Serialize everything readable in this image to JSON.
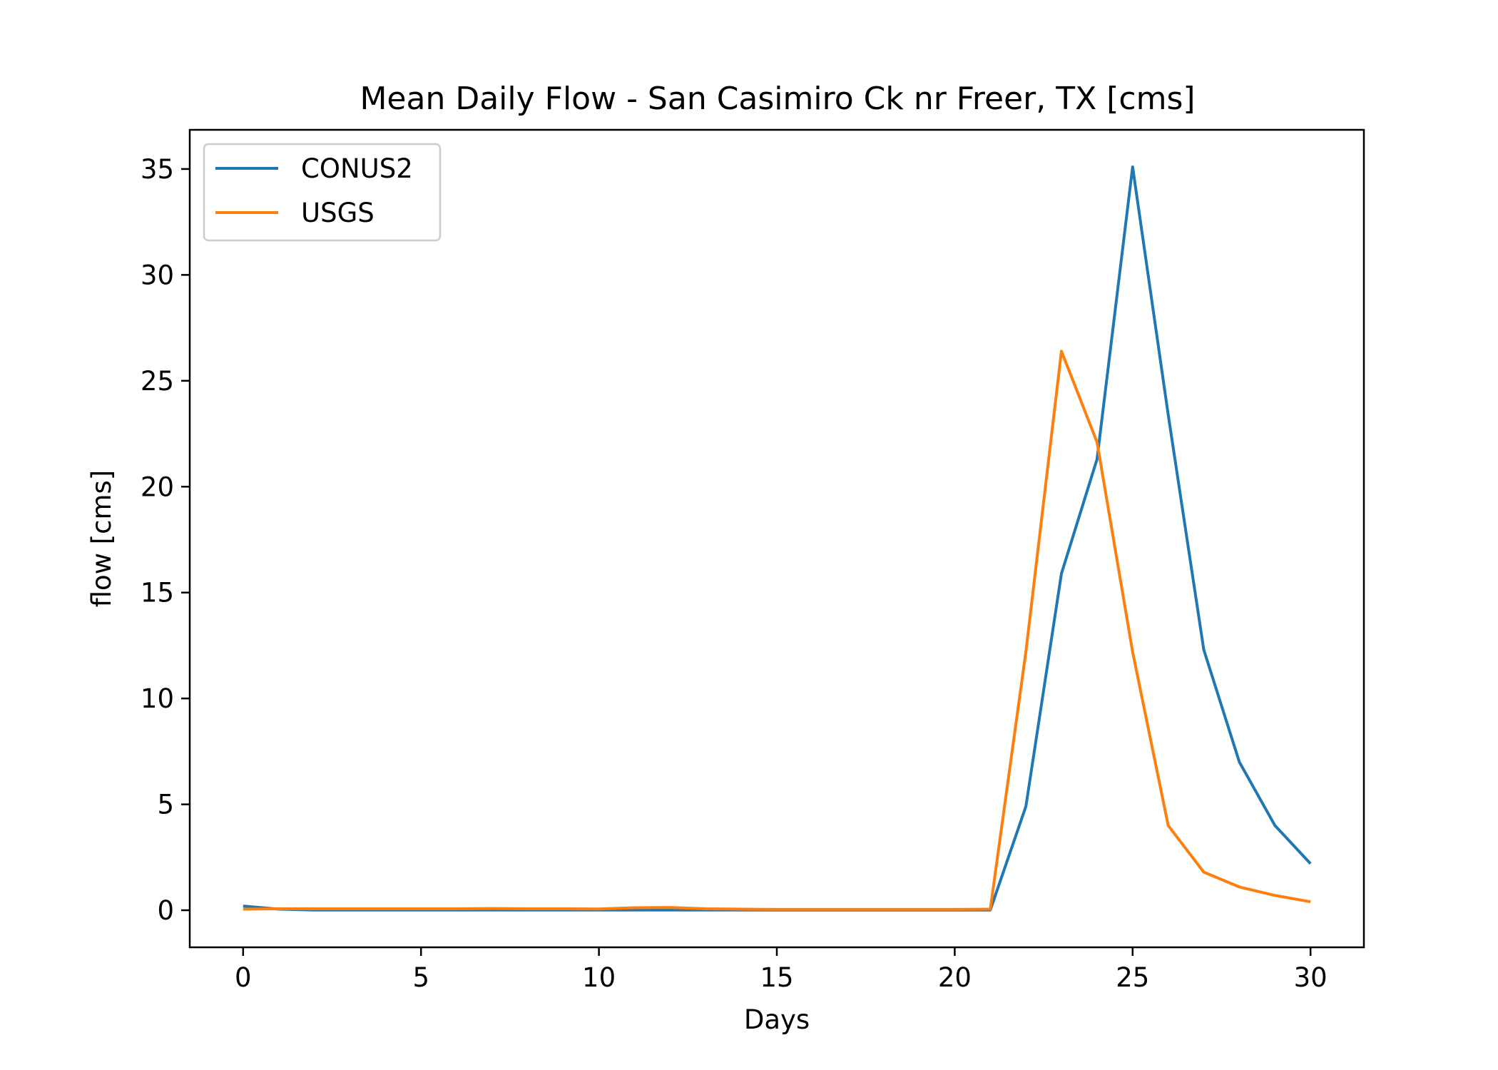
{
  "chart_data": {
    "type": "line",
    "title": "Mean Daily Flow - San Casimiro Ck nr Freer, TX [cms]",
    "xlabel": "Days",
    "ylabel": "flow [cms]",
    "xlim": [
      -1.5,
      31.5
    ],
    "ylim": [
      -1.75,
      36.85
    ],
    "xticks": [
      0,
      5,
      10,
      15,
      20,
      25,
      30
    ],
    "yticks": [
      0,
      5,
      10,
      15,
      20,
      25,
      30,
      35
    ],
    "grid": false,
    "legend_position": "upper-left",
    "x": [
      0,
      1,
      2,
      3,
      4,
      5,
      6,
      7,
      8,
      9,
      10,
      11,
      12,
      13,
      14,
      15,
      16,
      17,
      18,
      19,
      20,
      21,
      22,
      23,
      24,
      25,
      26,
      27,
      28,
      29,
      30
    ],
    "series": [
      {
        "name": "CONUS2",
        "color": "#1f77b4",
        "values": [
          0.2,
          0.05,
          0.01,
          0.01,
          0.01,
          0.01,
          0.01,
          0.01,
          0.01,
          0.01,
          0.01,
          0.01,
          0.01,
          0.01,
          0.01,
          0.01,
          0.01,
          0.01,
          0.01,
          0.01,
          0.01,
          0.01,
          4.9,
          15.9,
          21.3,
          35.1,
          23.4,
          12.3,
          7.0,
          4.0,
          2.2
        ]
      },
      {
        "name": "USGS",
        "color": "#ff7f0e",
        "values": [
          0.05,
          0.07,
          0.07,
          0.07,
          0.07,
          0.07,
          0.07,
          0.08,
          0.07,
          0.07,
          0.06,
          0.12,
          0.13,
          0.07,
          0.05,
          0.04,
          0.04,
          0.04,
          0.04,
          0.04,
          0.04,
          0.05,
          12.2,
          26.4,
          22.1,
          12.2,
          4.0,
          1.8,
          1.1,
          0.7,
          0.4
        ]
      }
    ]
  }
}
